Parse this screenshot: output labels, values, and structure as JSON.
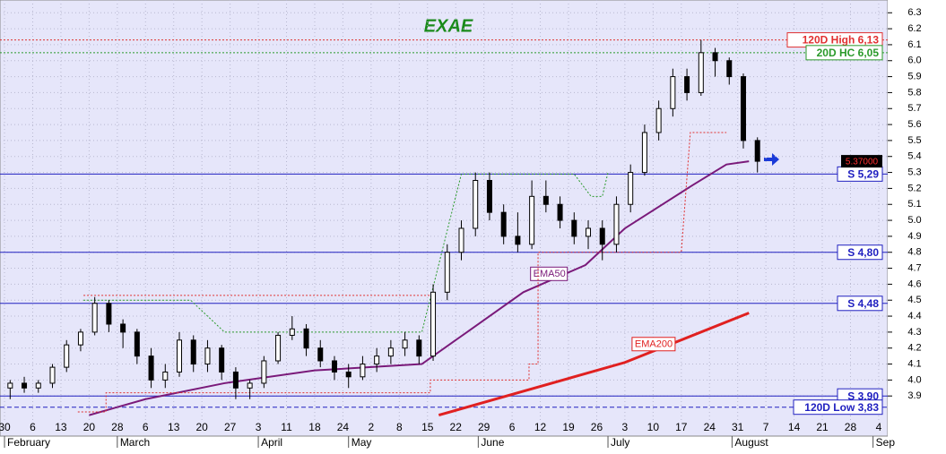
{
  "chart_data": {
    "type": "candlestick",
    "title": "EXAE",
    "up_color": "#ffffff",
    "down_color": "#000000",
    "x": [
      1,
      3.5,
      6,
      8.5,
      11,
      13.5,
      16,
      18.5,
      21,
      23.5,
      26,
      28.5,
      31,
      33.5,
      36,
      38.5,
      41,
      43.5,
      46,
      48.5,
      51,
      53.5,
      56,
      58.5,
      61,
      63.5,
      66,
      68.5,
      71,
      73.5,
      76,
      78.5,
      81,
      83.5,
      86,
      88.5,
      91,
      93.5,
      96,
      98.5,
      101,
      103.5,
      106,
      108.5,
      111,
      113.5,
      116,
      118.5,
      121,
      123.5,
      126,
      128.5,
      131,
      133.5
    ],
    "open": [
      3.95,
      3.98,
      3.95,
      3.98,
      4.08,
      4.22,
      4.3,
      4.48,
      4.35,
      4.3,
      4.15,
      4.0,
      4.05,
      4.25,
      4.1,
      4.2,
      4.05,
      3.95,
      3.98,
      4.12,
      4.28,
      4.32,
      4.2,
      4.12,
      4.05,
      4.02,
      4.1,
      4.15,
      4.2,
      4.25,
      4.15,
      4.55,
      4.8,
      4.95,
      5.25,
      5.05,
      4.9,
      4.85,
      5.15,
      5.1,
      5.0,
      4.9,
      4.95,
      4.85,
      5.1,
      5.3,
      5.55,
      5.7,
      5.9,
      5.8,
      6.05,
      6.0,
      5.9,
      5.5
    ],
    "high": [
      4.0,
      4.02,
      4.0,
      4.1,
      4.25,
      4.32,
      4.52,
      4.5,
      4.38,
      4.32,
      4.2,
      4.1,
      4.3,
      4.28,
      4.25,
      4.22,
      4.08,
      4.0,
      4.15,
      4.3,
      4.4,
      4.35,
      4.25,
      4.15,
      4.1,
      4.15,
      4.2,
      4.25,
      4.3,
      4.28,
      4.6,
      4.85,
      5.0,
      5.3,
      5.3,
      5.1,
      5.05,
      5.25,
      5.25,
      5.15,
      5.05,
      5.0,
      5.0,
      5.15,
      5.35,
      5.6,
      5.75,
      5.95,
      5.95,
      6.13,
      6.08,
      6.02,
      5.92,
      5.52
    ],
    "low": [
      3.88,
      3.92,
      3.92,
      3.95,
      4.05,
      4.18,
      4.28,
      4.3,
      4.2,
      4.1,
      3.95,
      3.95,
      4.02,
      4.05,
      4.05,
      4.0,
      3.88,
      3.88,
      3.95,
      4.1,
      4.25,
      4.15,
      4.08,
      4.0,
      3.95,
      4.0,
      4.05,
      4.1,
      4.15,
      4.1,
      4.12,
      4.5,
      4.75,
      4.9,
      5.0,
      4.85,
      4.8,
      4.82,
      5.05,
      4.95,
      4.85,
      4.82,
      4.75,
      4.8,
      5.05,
      5.28,
      5.5,
      5.65,
      5.75,
      5.78,
      5.9,
      5.85,
      5.45,
      5.3
    ],
    "close": [
      3.98,
      3.95,
      3.98,
      4.08,
      4.22,
      4.3,
      4.48,
      4.35,
      4.3,
      4.15,
      4.0,
      4.05,
      4.25,
      4.1,
      4.2,
      4.05,
      3.95,
      3.98,
      4.12,
      4.28,
      4.32,
      4.2,
      4.12,
      4.05,
      4.02,
      4.1,
      4.15,
      4.2,
      4.25,
      4.15,
      4.55,
      4.8,
      4.95,
      5.25,
      5.05,
      4.9,
      4.85,
      5.15,
      5.1,
      5.0,
      4.9,
      4.95,
      4.85,
      5.1,
      5.3,
      5.55,
      5.7,
      5.9,
      5.8,
      6.05,
      6.0,
      5.9,
      5.5,
      5.37
    ],
    "lines": [
      {
        "label": "EMA50",
        "color": "#7a1a7a",
        "style": "solid",
        "width": 2,
        "x": [
          15,
          25,
          39,
          55,
          74,
          82,
          92,
          103,
          110,
          122,
          128,
          132
        ],
        "values": [
          3.78,
          3.88,
          3.98,
          4.06,
          4.1,
          4.3,
          4.55,
          4.72,
          4.95,
          5.22,
          5.35,
          5.37
        ]
      },
      {
        "label": "EMA200",
        "color": "#e02020",
        "style": "solid",
        "width": 3,
        "x": [
          77,
          110,
          132
        ],
        "values": [
          3.78,
          4.11,
          4.42
        ]
      },
      {
        "color": "#e03030",
        "style": "dotted",
        "width": 1,
        "x": [
          13,
          18,
          18,
          75.5,
          75.5,
          93,
          93,
          94.6,
          94.6,
          120,
          121.6,
          128
        ],
        "values": [
          3.8,
          3.8,
          3.92,
          3.92,
          4.0,
          4.0,
          4.1,
          4.1,
          4.8,
          4.8,
          5.55,
          5.55
        ]
      },
      {
        "color": "#e03030",
        "style": "dotted",
        "width": 1,
        "x": [
          14,
          75.5
        ],
        "values": [
          4.53,
          4.53
        ]
      },
      {
        "color": "#2a9a2a",
        "style": "dotted",
        "width": 1,
        "x": [
          14,
          33,
          39,
          74,
          81,
          101,
          104,
          106,
          107
        ],
        "values": [
          4.5,
          4.5,
          4.3,
          4.3,
          5.29,
          5.29,
          5.15,
          5.15,
          5.3
        ]
      }
    ],
    "levels": [
      {
        "label": "120D High 6,13",
        "value": 6.13,
        "color": "#e03030",
        "style": "dotted"
      },
      {
        "label": "20D HC 6,05",
        "value": 6.05,
        "color": "#2a9a2a",
        "style": "dotted"
      },
      {
        "label": "S 5,29",
        "value": 5.29,
        "color": "#2020c0",
        "style": "solid"
      },
      {
        "label": "S 4,80",
        "value": 4.8,
        "color": "#2020c0",
        "style": "solid"
      },
      {
        "label": "S 4,48",
        "value": 4.48,
        "color": "#2020c0",
        "style": "solid"
      },
      {
        "label": "S 3,90",
        "value": 3.9,
        "color": "#2020c0",
        "style": "solid"
      },
      {
        "label": "120D Low 3,83",
        "value": 3.83,
        "color": "#2020c0",
        "style": "dashed"
      }
    ],
    "last_price": {
      "value": 5.37,
      "label": "5.37000"
    },
    "xlim": [
      -0.8,
      156.6
    ],
    "ylim": [
      3.66,
      6.38
    ],
    "yticks": [
      3.9,
      {
        "value": 4,
        "label": "4.0"
      },
      4.1,
      4.2,
      4.3,
      4.4,
      4.5,
      4.6,
      4.7,
      4.8,
      4.9,
      {
        "value": 5,
        "label": "5.0"
      },
      5.1,
      5.2,
      5.3,
      5.4,
      5.5,
      5.6,
      5.7,
      5.8,
      5.9,
      {
        "value": 6,
        "label": "6.0"
      },
      6.1,
      6.2,
      6.3
    ],
    "xticks": [
      {
        "value": 0,
        "label": "30"
      },
      {
        "value": 5,
        "label": "6"
      },
      {
        "value": 10,
        "label": "13"
      },
      {
        "value": 15,
        "label": "20"
      },
      {
        "value": 20,
        "label": "28"
      },
      {
        "value": 25,
        "label": "6"
      },
      {
        "value": 30,
        "label": "13"
      },
      {
        "value": 35,
        "label": "20"
      },
      {
        "value": 40,
        "label": "27"
      },
      {
        "value": 45,
        "label": "3"
      },
      {
        "value": 50,
        "label": "11"
      },
      {
        "value": 55,
        "label": "18"
      },
      {
        "value": 60,
        "label": "24"
      },
      {
        "value": 65,
        "label": "2"
      },
      {
        "value": 70,
        "label": "8"
      },
      {
        "value": 75,
        "label": "15"
      },
      {
        "value": 80,
        "label": "22"
      },
      {
        "value": 85,
        "label": "29"
      },
      {
        "value": 90,
        "label": "6"
      },
      {
        "value": 95,
        "label": "12"
      },
      {
        "value": 100,
        "label": "19"
      },
      {
        "value": 105,
        "label": "26"
      },
      {
        "value": 110,
        "label": "3"
      },
      {
        "value": 115,
        "label": "10"
      },
      {
        "value": 120,
        "label": "17"
      },
      {
        "value": 125,
        "label": "24"
      },
      {
        "value": 130,
        "label": "31"
      },
      {
        "value": 135,
        "label": "7"
      },
      {
        "value": 140,
        "label": "14"
      },
      {
        "value": 145,
        "label": "21"
      },
      {
        "value": 150,
        "label": "28"
      },
      {
        "value": 155,
        "label": "4"
      }
    ],
    "months": [
      {
        "value": 0,
        "label": "February"
      },
      {
        "value": 20,
        "label": "March"
      },
      {
        "value": 45,
        "label": "April"
      },
      {
        "value": 61,
        "label": "May"
      },
      {
        "value": 84,
        "label": "June"
      },
      {
        "value": 107,
        "label": "July"
      },
      {
        "value": 129,
        "label": "August"
      },
      {
        "value": 154,
        "label": "Sep"
      }
    ],
    "grid": true
  }
}
